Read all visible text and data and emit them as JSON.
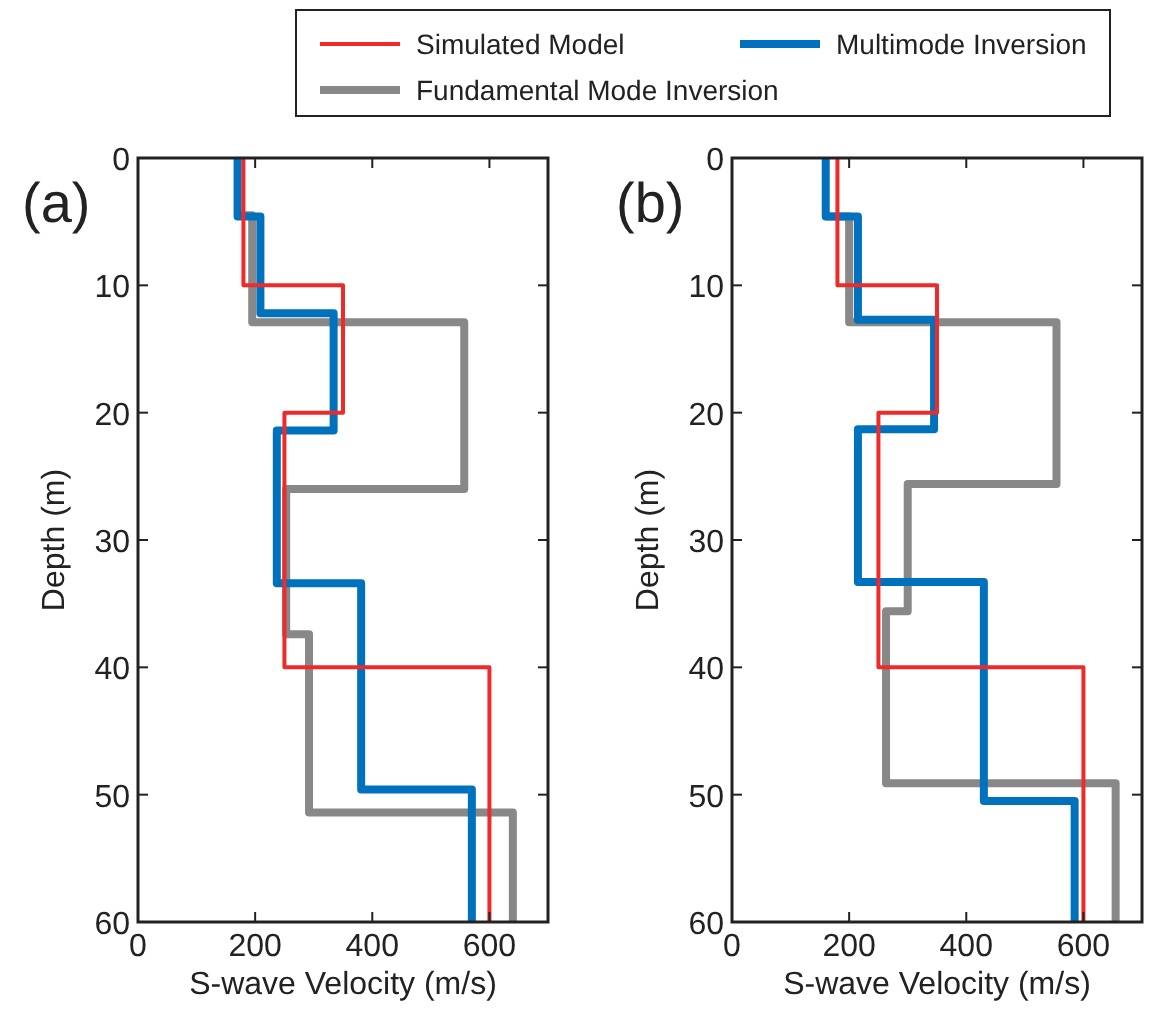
{
  "chart_data": [
    {
      "type": "line",
      "title": "(a)",
      "xlabel": "S-wave Velocity (m/s)",
      "ylabel": "Depth (m)",
      "xlim": [
        0,
        700
      ],
      "xticks": [
        0,
        200,
        400,
        600
      ],
      "ylim": [
        60,
        0
      ],
      "yticks": [
        0,
        10,
        20,
        30,
        40,
        50,
        60
      ],
      "legend": "top",
      "grid": false,
      "marker": "none",
      "line_style": "solid",
      "series": [
        {
          "name": "Simulated Model",
          "color": "#ee2a2a",
          "x": [
            180,
            180,
            350,
            350,
            250,
            250,
            600,
            600
          ],
          "values": [
            0,
            10,
            10,
            20,
            20,
            40,
            40,
            60
          ]
        },
        {
          "name": "Multimode Inversion",
          "color": "#0072bd",
          "x": [
            170,
            170,
            209,
            209,
            334,
            334,
            237,
            237,
            381,
            381,
            570,
            570
          ],
          "values": [
            0,
            4.6,
            4.6,
            12.2,
            12.2,
            21.4,
            21.4,
            33.4,
            33.4,
            49.6,
            49.6,
            60
          ]
        },
        {
          "name": "Fundamental Mode Inversion",
          "color": "#888888",
          "x": [
            170,
            195,
            195,
            557,
            557,
            253,
            253,
            292,
            292,
            640,
            640
          ],
          "values": [
            4.5,
            4.5,
            12.9,
            12.9,
            26,
            26,
            37.4,
            37.4,
            51.4,
            51.4,
            60
          ]
        }
      ]
    },
    {
      "type": "line",
      "title": "(b)",
      "xlabel": "S-wave Velocity (m/s)",
      "ylabel": "Depth (m)",
      "xlim": [
        0,
        700
      ],
      "xticks": [
        0,
        200,
        400,
        600
      ],
      "ylim": [
        60,
        0
      ],
      "yticks": [
        0,
        10,
        20,
        30,
        40,
        50,
        60
      ],
      "legend": false,
      "grid": false,
      "marker": "none",
      "line_style": "solid",
      "series": [
        {
          "color": "#ee2a2a",
          "x": [
            180,
            180,
            350,
            350,
            250,
            250,
            600,
            600
          ],
          "values": [
            0,
            10,
            10,
            20,
            20,
            40,
            40,
            60
          ]
        },
        {
          "color": "#0072bd",
          "x": [
            160,
            160,
            215,
            215,
            345,
            345,
            215,
            215,
            430,
            430,
            585,
            585
          ],
          "values": [
            0,
            4.6,
            4.6,
            12.7,
            12.7,
            21.3,
            21.3,
            33.3,
            33.3,
            50.5,
            50.5,
            60
          ]
        },
        {
          "color": "#888888",
          "x": [
            160,
            200,
            200,
            554,
            554,
            300,
            300,
            263,
            263,
            655,
            655
          ],
          "values": [
            4.6,
            4.6,
            12.9,
            12.9,
            25.6,
            25.6,
            35.6,
            35.6,
            49.1,
            49.1,
            60
          ]
        }
      ]
    }
  ]
}
